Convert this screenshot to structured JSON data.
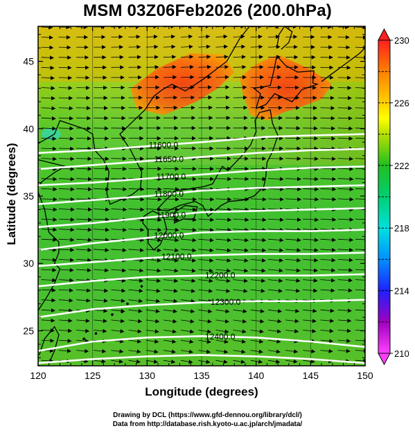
{
  "title": "MSM 03Z06Feb2026 (200.0hPa)",
  "xlabel": "Longitude (degrees)",
  "ylabel": "Latitude  (degrees)",
  "credits": {
    "line1": "Drawing by DCL (https://www.gfd-dennou.org/library/dcl/)",
    "line2": "Data from http://database.rish.kyoto-u.ac.jp/arch/jmadata/"
  },
  "chart_data": {
    "type": "heatmap",
    "x_range": [
      120,
      150
    ],
    "y_range": [
      22.4,
      47.6
    ],
    "x_ticks": [
      "120",
      "125",
      "130",
      "135",
      "140",
      "145",
      "150"
    ],
    "y_ticks": [
      "25",
      "30",
      "35",
      "40",
      "45"
    ],
    "colorbar": {
      "min": 210,
      "max": 230,
      "tick_labels": [
        "210",
        "214",
        "218",
        "222",
        "226",
        "230"
      ],
      "stops": [
        {
          "value": 210,
          "color": "#ff40ff"
        },
        {
          "value": 212,
          "color": "#a000c0"
        },
        {
          "value": 214,
          "color": "#2020ff"
        },
        {
          "value": 216,
          "color": "#0090ff"
        },
        {
          "value": 218,
          "color": "#00e0e0"
        },
        {
          "value": 220,
          "color": "#00d070"
        },
        {
          "value": 222,
          "color": "#20c020"
        },
        {
          "value": 224,
          "color": "#b8e000"
        },
        {
          "value": 225,
          "color": "#ffff00"
        },
        {
          "value": 226,
          "color": "#ffd000"
        },
        {
          "value": 228,
          "color": "#ff8000"
        },
        {
          "value": 230,
          "color": "#ff2020"
        }
      ]
    },
    "contours": [
      {
        "label": "11600.0",
        "label_lon": 131.5,
        "points": [
          [
            120,
            38.2
          ],
          [
            125,
            38.4
          ],
          [
            130,
            38.7
          ],
          [
            135,
            39.0
          ],
          [
            138,
            39.2
          ],
          [
            141,
            39.4
          ],
          [
            145,
            39.5
          ],
          [
            150,
            39.6
          ]
        ]
      },
      {
        "label": "11650.0",
        "label_lon": 132.0,
        "points": [
          [
            120,
            37.0
          ],
          [
            125,
            37.3
          ],
          [
            130,
            37.6
          ],
          [
            135,
            37.9
          ],
          [
            140,
            38.2
          ],
          [
            145,
            38.4
          ],
          [
            150,
            38.5
          ]
        ]
      },
      {
        "label": "11700.0",
        "label_lon": 132.2,
        "points": [
          [
            120,
            35.8
          ],
          [
            125,
            36.0
          ],
          [
            130,
            36.3
          ],
          [
            135,
            36.6
          ],
          [
            140,
            36.9
          ],
          [
            145,
            37.1
          ],
          [
            150,
            37.2
          ]
        ]
      },
      {
        "label": "11800.0",
        "label_lon": 132.0,
        "points": [
          [
            120,
            34.4
          ],
          [
            125,
            34.7
          ],
          [
            130,
            35.0
          ],
          [
            135,
            35.4
          ],
          [
            140,
            35.6
          ],
          [
            145,
            35.7
          ],
          [
            150,
            35.8
          ]
        ]
      },
      {
        "label": "11900.0",
        "label_lon": 132.2,
        "points": [
          [
            120,
            32.7
          ],
          [
            125,
            33.0
          ],
          [
            130,
            33.4
          ],
          [
            135,
            33.8
          ],
          [
            140,
            33.9
          ],
          [
            145,
            34.0
          ],
          [
            150,
            34.1
          ]
        ]
      },
      {
        "label": "12000.0",
        "label_lon": 132.0,
        "points": [
          [
            120,
            31.0
          ],
          [
            125,
            31.5
          ],
          [
            130,
            31.9
          ],
          [
            135,
            32.3
          ],
          [
            140,
            32.4
          ],
          [
            145,
            32.4
          ],
          [
            150,
            32.5
          ]
        ]
      },
      {
        "label": "12100.0",
        "label_lon": 132.7,
        "points": [
          [
            120,
            29.8
          ],
          [
            125,
            30.1
          ],
          [
            130,
            30.4
          ],
          [
            135,
            30.6
          ],
          [
            140,
            30.7
          ],
          [
            145,
            30.7
          ],
          [
            150,
            30.8
          ]
        ]
      },
      {
        "label": "12200.0",
        "label_lon": 136.7,
        "points": [
          [
            120,
            28.3
          ],
          [
            125,
            28.7
          ],
          [
            130,
            29.0
          ],
          [
            135,
            29.1
          ],
          [
            140,
            29.1
          ],
          [
            145,
            29.1
          ],
          [
            150,
            29.2
          ]
        ]
      },
      {
        "label": "12300.0",
        "label_lon": 137.2,
        "points": [
          [
            120,
            26.0
          ],
          [
            125,
            26.6
          ],
          [
            130,
            26.9
          ],
          [
            135,
            27.1
          ],
          [
            140,
            27.2
          ],
          [
            145,
            27.2
          ],
          [
            150,
            27.3
          ]
        ]
      },
      {
        "label": "12400.0",
        "label_lon": 136.7,
        "points": [
          [
            120,
            23.5
          ],
          [
            125,
            24.2
          ],
          [
            130,
            24.5
          ],
          [
            135,
            24.6
          ],
          [
            140,
            24.5
          ],
          [
            145,
            24.2
          ],
          [
            150,
            23.8
          ]
        ]
      },
      {
        "label": "",
        "label_lon": 0,
        "points": [
          [
            120,
            22.6
          ],
          [
            125,
            22.9
          ],
          [
            130,
            23.1
          ],
          [
            135,
            23.2
          ],
          [
            140,
            23.1
          ],
          [
            145,
            22.9
          ],
          [
            150,
            22.6
          ]
        ]
      }
    ],
    "warm_regions": [
      {
        "name": "manchuria-warm",
        "points": [
          [
            128.5,
            43.0
          ],
          [
            131,
            44.5
          ],
          [
            134,
            45.6
          ],
          [
            137,
            45.5
          ],
          [
            138,
            44.2
          ],
          [
            136.5,
            43.0
          ],
          [
            134.5,
            42.0
          ],
          [
            131.5,
            41.0
          ],
          [
            129,
            41.5
          ]
        ]
      },
      {
        "name": "hokkaido-warm",
        "points": [
          [
            138.5,
            43.8
          ],
          [
            140,
            44.8
          ],
          [
            142,
            45.5
          ],
          [
            145,
            44.4
          ],
          [
            147,
            43.3
          ],
          [
            146,
            42.2
          ],
          [
            144,
            41.6
          ],
          [
            142.5,
            41.2
          ],
          [
            141,
            40.6
          ],
          [
            139.5,
            41.0
          ],
          [
            138.8,
            42.5
          ]
        ]
      }
    ]
  }
}
